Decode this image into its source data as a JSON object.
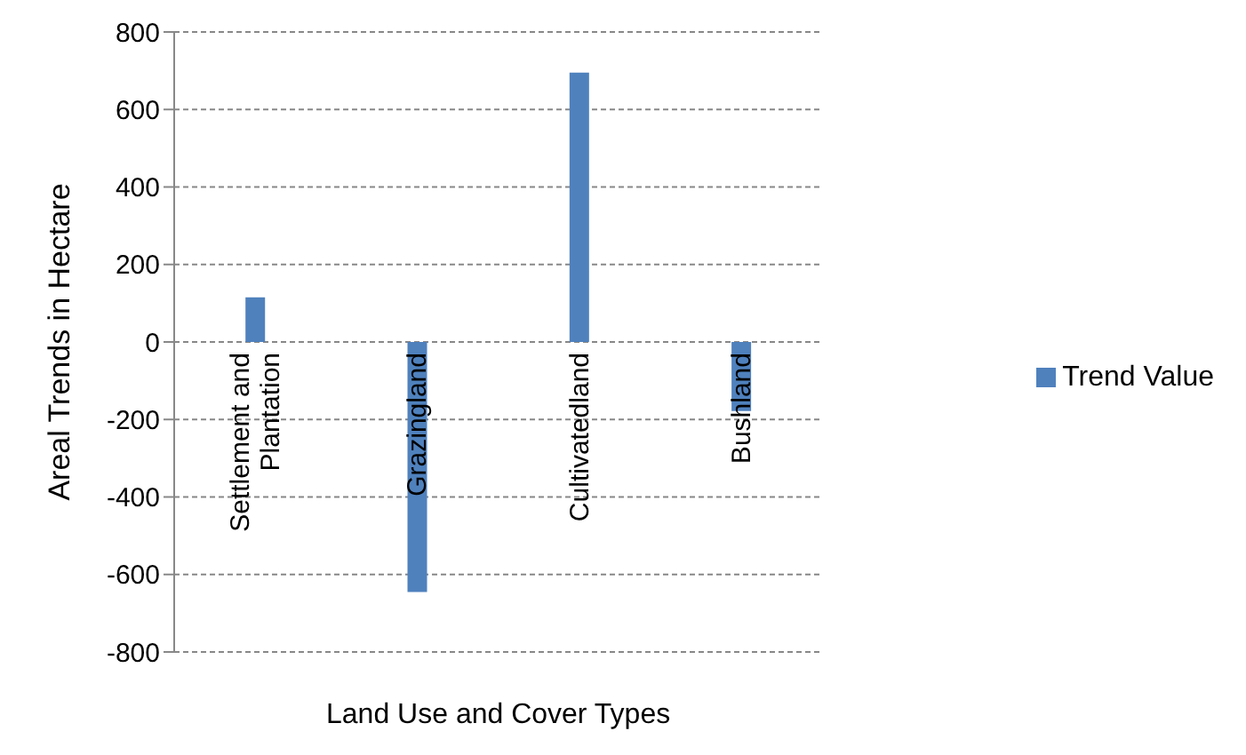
{
  "chart_data": {
    "type": "bar",
    "xlabel": "Land Use and Cover  Types",
    "ylabel": "Areal Trends in Hectare",
    "categories": [
      "Settlement and Plantation",
      "Grazingland",
      "Cultivatedland",
      "Bushland"
    ],
    "series": [
      {
        "name": "Trend Value",
        "color": "#4f81bd",
        "values": [
          115,
          -645,
          695,
          -178
        ]
      }
    ],
    "ylim": [
      -800,
      800
    ],
    "yticks": [
      -800,
      -600,
      -400,
      -200,
      0,
      200,
      400,
      600,
      800
    ],
    "grid": "y",
    "legend": "right"
  }
}
